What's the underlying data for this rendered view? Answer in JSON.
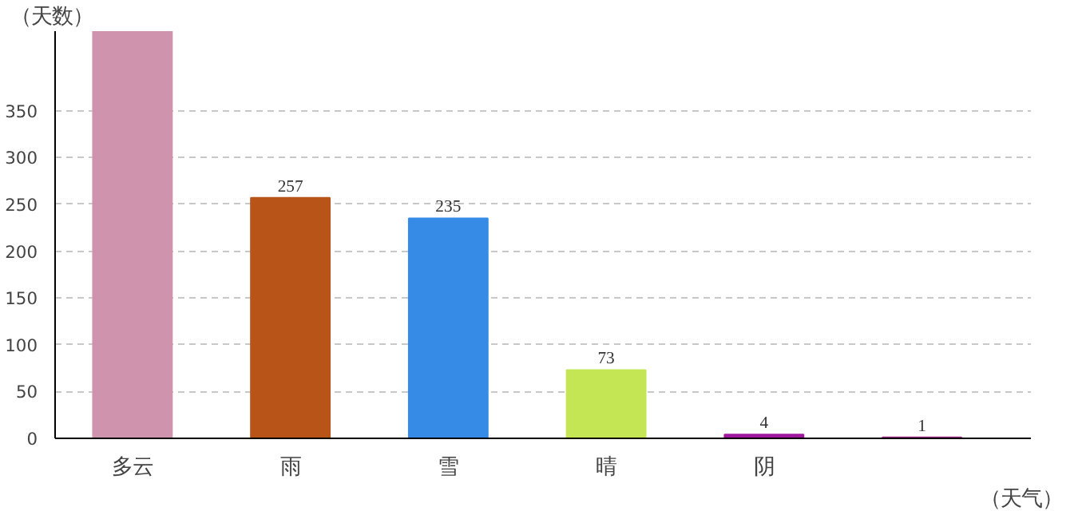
{
  "chart_data": {
    "type": "bar",
    "xlabel": "（天气）",
    "ylabel": "（天数）",
    "categories": [
      "多云",
      "雨",
      "雪",
      "晴",
      "阴",
      null
    ],
    "values": [
      435,
      257,
      235,
      73,
      4,
      1
    ],
    "colors": [
      "#d093ad",
      "#b85418",
      "#368be6",
      "#c4e655",
      "#a0189e",
      "#a02e8a"
    ],
    "value_labels": [
      null,
      "257",
      "235",
      "73",
      "4",
      "1"
    ],
    "ylim": [
      0,
      435
    ],
    "yticks": [
      0,
      50,
      100,
      150,
      200,
      250,
      300,
      350
    ],
    "grid": "y"
  }
}
